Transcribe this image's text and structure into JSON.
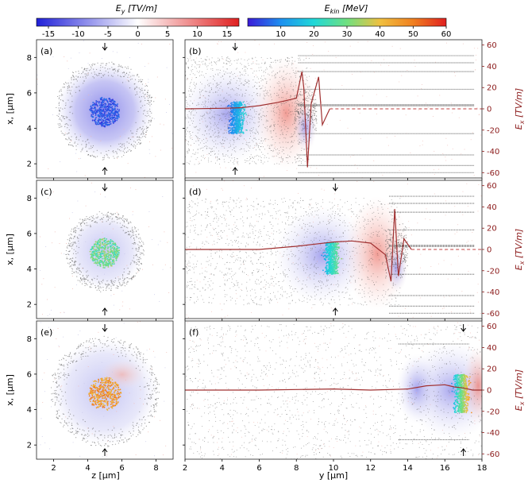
{
  "chart_data": {
    "type": "scatter",
    "colorbars": [
      {
        "label": "E_y [TV/m]",
        "label_main": "E",
        "label_sub": "y",
        "label_unit": " [TV/m]",
        "range": [
          -17,
          17
        ],
        "ticks": [
          -15,
          -10,
          -5,
          0,
          5,
          10,
          15
        ],
        "colormap": "bwr",
        "colors": [
          "#2020d8",
          "#ffffff",
          "#e02020"
        ]
      },
      {
        "label": "E_kin [MeV]",
        "label_main": "E",
        "label_sub": "kin",
        "label_unit": " [MeV]",
        "range": [
          0,
          60
        ],
        "ticks": [
          10,
          20,
          30,
          40,
          50,
          60
        ],
        "colormap": "rainbow",
        "colors": [
          "#3a1ad8",
          "#1e90f0",
          "#20d8d8",
          "#70e080",
          "#f0c040",
          "#f08020",
          "#e02020"
        ]
      }
    ],
    "left_xlabel": "z [μm]",
    "right_xlabel": "y [μm]",
    "ylabel": "x, [μm]",
    "right_ylabel_main": "E",
    "right_ylabel_sub": "x",
    "right_ylabel_unit": " [TV/m]",
    "left_xlim": [
      1,
      9
    ],
    "left_xticks": [
      2,
      4,
      6,
      8
    ],
    "ylim": [
      1.2,
      9
    ],
    "yticks": [
      2,
      4,
      6,
      8
    ],
    "right_xlim": [
      2,
      18
    ],
    "right_xticks": [
      2,
      4,
      6,
      8,
      10,
      12,
      14,
      16,
      18
    ],
    "ex_lim": [
      -65,
      65
    ],
    "ex_ticks": [
      -60,
      -40,
      -20,
      0,
      20,
      40,
      60
    ],
    "rows": [
      {
        "left_label": "(a)",
        "right_label": "(b)",
        "cross": {
          "center": [
            5,
            5
          ],
          "ring_r": 2.6,
          "core_r": 0.9,
          "field_max": -8,
          "core_emin": 2,
          "core_emax": 8
        },
        "long": {
          "arrow_y": 4.7,
          "blob_center": [
            4.8,
            4.6
          ],
          "blob_w": 1.2,
          "blob_h": 1.5,
          "blob_emin": 5,
          "blob_emax": 22,
          "front_y": 8.4,
          "ex_curve": [
            [
              2,
              0
            ],
            [
              4,
              0.5
            ],
            [
              5,
              1
            ],
            [
              6,
              3
            ],
            [
              7,
              6
            ],
            [
              7.5,
              8
            ],
            [
              8,
              10
            ],
            [
              8.3,
              35
            ],
            [
              8.4,
              20
            ],
            [
              8.6,
              -55
            ],
            [
              8.8,
              5
            ],
            [
              9.2,
              30
            ],
            [
              9.4,
              -15
            ],
            [
              9.8,
              0
            ],
            [
              18,
              0
            ]
          ],
          "ex_dashed_from": 9.8
        }
      },
      {
        "left_label": "(c)",
        "right_label": "(d)",
        "cross": {
          "center": [
            5,
            5
          ],
          "ring_r": 2.1,
          "core_r": 0.9,
          "field_max": -6,
          "core_emin": 22,
          "core_emax": 35
        },
        "long": {
          "arrow_y": 10.1,
          "blob_center": [
            9.9,
            4.6
          ],
          "blob_w": 1.1,
          "blob_h": 1.5,
          "blob_emin": 12,
          "blob_emax": 32,
          "front_y": 13.3,
          "ex_curve": [
            [
              2,
              0
            ],
            [
              6,
              0
            ],
            [
              8,
              3
            ],
            [
              9,
              5
            ],
            [
              10,
              7
            ],
            [
              11,
              8
            ],
            [
              12,
              6
            ],
            [
              12.8,
              -5
            ],
            [
              13.1,
              -30
            ],
            [
              13.3,
              38
            ],
            [
              13.5,
              -25
            ],
            [
              13.8,
              10
            ],
            [
              14.2,
              0
            ],
            [
              18,
              0
            ]
          ],
          "ex_dashed_from": 14.2
        }
      },
      {
        "left_label": "(e)",
        "right_label": "(f)",
        "cross": {
          "center": [
            5,
            5
          ],
          "ring_r": 2.9,
          "core_r": 1.0,
          "field_max": 4,
          "core_emin": 40,
          "core_emax": 52
        },
        "long": {
          "arrow_y": 17.0,
          "blob_center": [
            16.9,
            4.9
          ],
          "blob_w": 1.2,
          "blob_h": 1.8,
          "blob_emin": 10,
          "blob_emax": 50,
          "front_y": 17.8,
          "ex_curve": [
            [
              2,
              0
            ],
            [
              6,
              0
            ],
            [
              10,
              1
            ],
            [
              12,
              0
            ],
            [
              14,
              1
            ],
            [
              15,
              4
            ],
            [
              16,
              5
            ],
            [
              16.5,
              3
            ],
            [
              17,
              2
            ],
            [
              17.5,
              0
            ],
            [
              18,
              0
            ]
          ],
          "ex_dashed_from": 18
        }
      }
    ]
  }
}
